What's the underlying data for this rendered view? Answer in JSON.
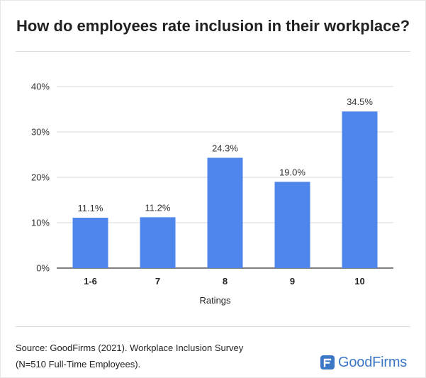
{
  "title": "How do employees rate inclusion in their workplace?",
  "source_line1": "Source: GoodFirms (2021). Workplace Inclusion Survey",
  "source_line2": "(N=510 Full-Time Employees).",
  "logo_text": "GoodFirms",
  "colors": {
    "bar": "#4f86ec",
    "grid": "#d9d9d9",
    "axis": "#333333",
    "logo": "#3c77c6"
  },
  "chart_data": {
    "type": "bar",
    "categories": [
      "1-6",
      "7",
      "8",
      "9",
      "10"
    ],
    "values": [
      11.1,
      11.2,
      24.3,
      19.0,
      34.5
    ],
    "data_labels": [
      "11.1%",
      "11.2%",
      "24.3%",
      "19.0%",
      "34.5%"
    ],
    "y_ticks": [
      0,
      10,
      20,
      30,
      40
    ],
    "y_tick_labels": [
      "0%",
      "10%",
      "20%",
      "30%",
      "40%"
    ],
    "xlabel": "Ratings",
    "ylabel": "",
    "ylim": [
      0,
      40
    ],
    "grid": true
  }
}
